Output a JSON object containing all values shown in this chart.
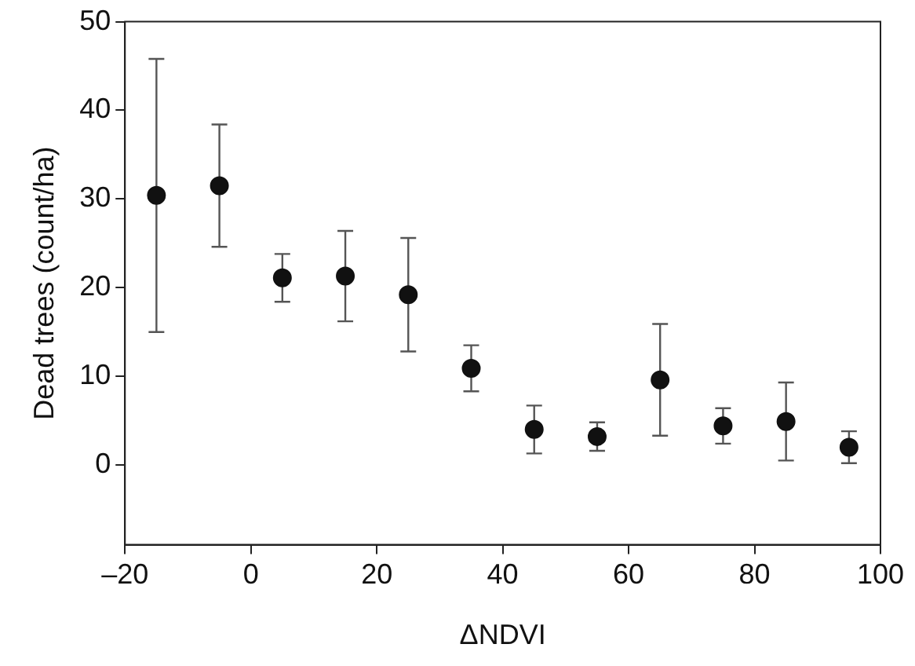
{
  "chart_data": {
    "type": "scatter",
    "xlabel": "ΔNDVI",
    "ylabel": "Dead trees (count/ha)",
    "xlim": [
      -20,
      100
    ],
    "ylim": [
      -9,
      50
    ],
    "xticks": [
      {
        "value": -20,
        "label": "–20"
      },
      0,
      20,
      40,
      60,
      80,
      100
    ],
    "yticks": [
      0,
      10,
      20,
      30,
      40,
      50
    ],
    "grid": false,
    "legend": false,
    "marker": "circle",
    "series": [
      {
        "color": "#111111",
        "x": [
          -15,
          -5,
          5,
          15,
          25,
          35,
          45,
          55,
          65,
          75,
          85,
          95
        ],
        "values": [
          30.4,
          31.5,
          21.1,
          21.3,
          19.2,
          10.9,
          4.0,
          3.2,
          9.6,
          4.4,
          4.9,
          2.0
        ],
        "errors": [
          15.4,
          6.9,
          2.7,
          5.1,
          6.4,
          2.6,
          2.7,
          1.6,
          6.3,
          2.0,
          4.4,
          1.8
        ]
      }
    ]
  }
}
